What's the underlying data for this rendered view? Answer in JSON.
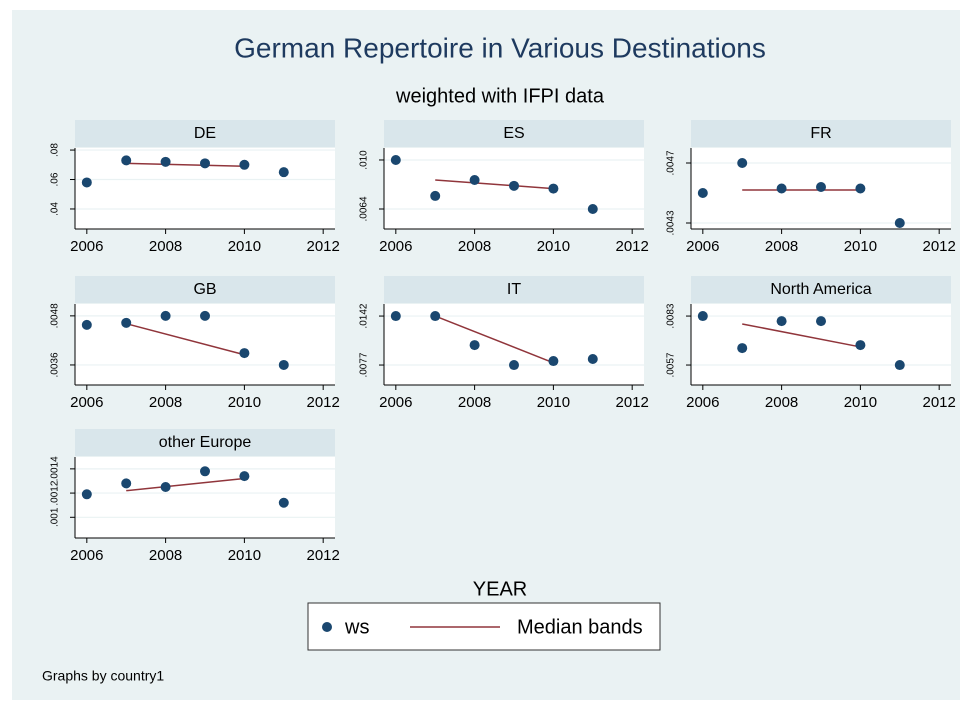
{
  "title": "German Repertoire in Various Destinations",
  "subtitle": "weighted with IFPI data",
  "xlabel": "YEAR",
  "note": "Graphs by country1",
  "legend": [
    {
      "name": "ws",
      "color": "#1a476f"
    },
    {
      "name": "Median bands",
      "color": "#90353b"
    }
  ],
  "chart_data": [
    {
      "type": "scatter",
      "title": "DE",
      "points": {
        "x": [
          2006,
          2007,
          2008,
          2009,
          2010,
          2011
        ],
        "values": [
          0.058,
          0.073,
          0.072,
          0.071,
          0.07,
          0.065
        ]
      },
      "median": {
        "x": [
          2007,
          2010
        ],
        "values": [
          0.071,
          0.069
        ]
      },
      "xlim": [
        2005.7,
        2012.3
      ],
      "xticks": [
        2006,
        2008,
        2010,
        2012
      ],
      "ylim": [
        0.0264,
        0.0814
      ],
      "yticks": [
        {
          "value": 0.04,
          "label": ".04"
        },
        {
          "value": 0.06,
          "label": ".06"
        },
        {
          "value": 0.08,
          "label": ".08"
        }
      ]
    },
    {
      "type": "scatter",
      "title": "ES",
      "points": {
        "x": [
          2006,
          2007,
          2008,
          2009,
          2010,
          2011
        ],
        "values": [
          0.01,
          0.00736,
          0.00853,
          0.0081,
          0.0079,
          0.0064
        ]
      },
      "median": {
        "x": [
          2007,
          2010
        ],
        "values": [
          0.00853,
          0.0079
        ]
      },
      "xlim": [
        2005.7,
        2012.3
      ],
      "xticks": [
        2006,
        2008,
        2010,
        2012
      ],
      "ylim": [
        0.00493,
        0.01088
      ],
      "yticks": [
        {
          "value": 0.0064,
          "label": ".0064"
        },
        {
          "value": 0.01,
          "label": ".010"
        }
      ]
    },
    {
      "type": "scatter",
      "title": "FR",
      "points": {
        "x": [
          2006,
          2007,
          2008,
          2009,
          2010,
          2011
        ],
        "values": [
          0.0045,
          0.0047,
          0.00453,
          0.00454,
          0.00453,
          0.0043
        ]
      },
      "median": {
        "x": [
          2007,
          2010
        ],
        "values": [
          0.00452,
          0.00452
        ]
      },
      "xlim": [
        2005.7,
        2012.3
      ],
      "xticks": [
        2006,
        2008,
        2010,
        2012
      ],
      "ylim": [
        0.00426,
        0.0048
      ],
      "yticks": [
        {
          "value": 0.0043,
          "label": ".0043"
        },
        {
          "value": 0.0047,
          "label": ".0047"
        }
      ]
    },
    {
      "type": "scatter",
      "title": "GB",
      "points": {
        "x": [
          2006,
          2007,
          2008,
          2009,
          2010,
          2011
        ],
        "values": [
          0.00458,
          0.00463,
          0.0048,
          0.0048,
          0.00389,
          0.0036
        ]
      },
      "median": {
        "x": [
          2007,
          2010
        ],
        "values": [
          0.00461,
          0.00385
        ]
      },
      "xlim": [
        2005.7,
        2012.3
      ],
      "xticks": [
        2006,
        2008,
        2010,
        2012
      ],
      "ylim": [
        0.00311,
        0.00509
      ],
      "yticks": [
        {
          "value": 0.0036,
          "label": ".0036"
        },
        {
          "value": 0.0048,
          "label": ".0048"
        }
      ]
    },
    {
      "type": "scatter",
      "title": "IT",
      "points": {
        "x": [
          2006,
          2007,
          2008,
          2009,
          2010,
          2011
        ],
        "values": [
          0.0142,
          0.0142,
          0.01035,
          0.0077,
          0.00823,
          0.0085
        ]
      },
      "median": {
        "x": [
          2007,
          2010
        ],
        "values": [
          0.0142,
          0.008
        ]
      },
      "xlim": [
        2005.7,
        2012.3
      ],
      "xticks": [
        2006,
        2008,
        2010,
        2012
      ],
      "ylim": [
        0.00505,
        0.0158
      ],
      "yticks": [
        {
          "value": 0.0077,
          "label": ".0077"
        },
        {
          "value": 0.0142,
          "label": ".0142"
        }
      ]
    },
    {
      "type": "scatter",
      "title": "North America",
      "points": {
        "x": [
          2006,
          2007,
          2008,
          2009,
          2010,
          2011
        ],
        "values": [
          0.0083,
          0.0066,
          0.00803,
          0.00803,
          0.00676,
          0.0057
        ]
      },
      "median": {
        "x": [
          2007,
          2010
        ],
        "values": [
          0.00788,
          0.00666
        ]
      },
      "xlim": [
        2005.7,
        2012.3
      ],
      "xticks": [
        2006,
        2008,
        2010,
        2012
      ],
      "ylim": [
        0.00464,
        0.00894
      ],
      "yticks": [
        {
          "value": 0.0057,
          "label": ".0057"
        },
        {
          "value": 0.0083,
          "label": ".0083"
        }
      ]
    },
    {
      "type": "scatter",
      "title": "other Europe",
      "points": {
        "x": [
          2006,
          2007,
          2008,
          2009,
          2010,
          2011
        ],
        "values": [
          0.00119,
          0.00128,
          0.00125,
          0.00138,
          0.00134,
          0.00112
        ]
      },
      "median": {
        "x": [
          2007,
          2010
        ],
        "values": [
          0.00122,
          0.00132
        ]
      },
      "xlim": [
        2005.7,
        2012.3
      ],
      "xticks": [
        2006,
        2008,
        2010,
        2012
      ],
      "ylim": [
        0.000829,
        0.001498
      ],
      "yticks": [
        {
          "value": 0.001,
          "label": ".001"
        },
        {
          "value": 0.0012,
          "label": ".0012"
        },
        {
          "value": 0.0014,
          "label": ".0014"
        }
      ]
    }
  ]
}
